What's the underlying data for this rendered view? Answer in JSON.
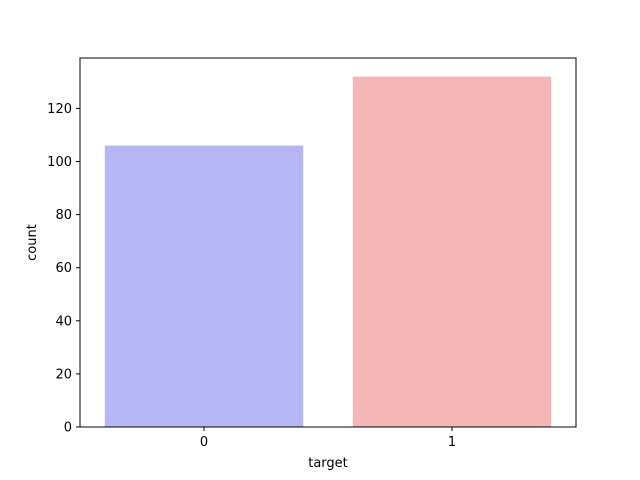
{
  "chart_data": {
    "type": "bar",
    "categories": [
      "0",
      "1"
    ],
    "values": [
      106,
      132
    ],
    "xlabel": "target",
    "ylabel": "count",
    "ylim": [
      0,
      139
    ],
    "yticks": [
      0,
      20,
      40,
      60,
      80,
      100,
      120
    ],
    "bar_colors": [
      "#b6b6f4",
      "#f4b6b6"
    ],
    "grid": false,
    "legend": "none"
  }
}
